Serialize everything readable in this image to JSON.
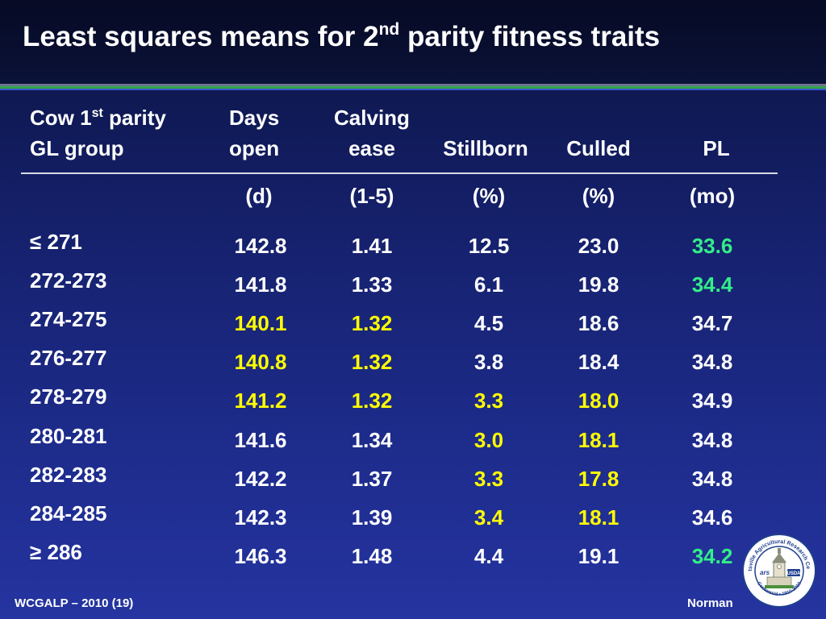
{
  "title": {
    "main": "Least squares means for 2",
    "sup": "nd",
    "rest": " parity fitness traits"
  },
  "headers": {
    "group_line1": "Cow 1",
    "group_sup": "st",
    "group_line1_rest": " parity",
    "group_line2": "GL group",
    "days_line1": "Days",
    "days_line2": "open",
    "calving_line1": "Calving",
    "calving_line2": "ease",
    "stillborn": "Stillborn",
    "culled": "Culled",
    "pl": "PL"
  },
  "units": {
    "days": "(d)",
    "calving": "(1-5)",
    "stillborn": "(%)",
    "culled": "(%)",
    "pl": "(mo)"
  },
  "rows": [
    {
      "group": "≤ 271",
      "days": "142.8",
      "calving": "1.41",
      "stillborn": "12.5",
      "culled": "23.0",
      "pl": "33.6"
    },
    {
      "group": "272-273",
      "days": "141.8",
      "calving": "1.33",
      "stillborn": "6.1",
      "culled": "19.8",
      "pl": "34.4"
    },
    {
      "group": "274-275",
      "days": "140.1",
      "calving": "1.32",
      "stillborn": "4.5",
      "culled": "18.6",
      "pl": "34.7"
    },
    {
      "group": "276-277",
      "days": "140.8",
      "calving": "1.32",
      "stillborn": "3.8",
      "culled": "18.4",
      "pl": "34.8"
    },
    {
      "group": "278-279",
      "days": "141.2",
      "calving": "1.32",
      "stillborn": "3.3",
      "culled": "18.0",
      "pl": "34.9"
    },
    {
      "group": "280-281",
      "days": "141.6",
      "calving": "1.34",
      "stillborn": "3.0",
      "culled": "18.1",
      "pl": "34.8"
    },
    {
      "group": "282-283",
      "days": "142.2",
      "calving": "1.37",
      "stillborn": "3.3",
      "culled": "17.8",
      "pl": "34.8"
    },
    {
      "group": "284-285",
      "days": "142.3",
      "calving": "1.39",
      "stillborn": "3.4",
      "culled": "18.1",
      "pl": "34.6"
    },
    {
      "group": "≥ 286",
      "days": "146.3",
      "calving": "1.48",
      "stillborn": "4.4",
      "culled": "19.1",
      "pl": "34.2"
    }
  ],
  "highlights": {
    "days": [
      "white",
      "white",
      "yellow",
      "yellow",
      "yellow",
      "white",
      "white",
      "white",
      "white"
    ],
    "calving": [
      "white",
      "white",
      "yellow",
      "yellow",
      "yellow",
      "white",
      "white",
      "white",
      "white"
    ],
    "stillborn": [
      "white",
      "white",
      "white",
      "white",
      "yellow",
      "yellow",
      "yellow",
      "yellow",
      "white"
    ],
    "culled": [
      "white",
      "white",
      "white",
      "white",
      "yellow",
      "yellow",
      "yellow",
      "yellow",
      "white"
    ],
    "pl": [
      "green",
      "green",
      "white",
      "white",
      "white",
      "white",
      "white",
      "white",
      "green"
    ]
  },
  "colors": {
    "highlight_yellow": "#ffff00",
    "highlight_green": "#33ee88",
    "text": "#ffffff"
  },
  "footer": {
    "left": "WCGALP – 2010 (19)",
    "right": "Norman"
  },
  "logo": {
    "ring_text": "Beltsville Agricultural Research Center",
    "bottom_text": "Centennial • 1910-2010",
    "badge": "USDA",
    "mark": "ars"
  }
}
